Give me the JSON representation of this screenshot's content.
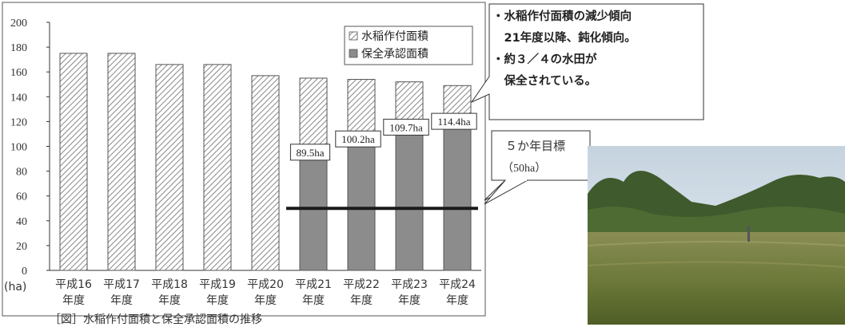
{
  "chart_data": {
    "type": "bar",
    "y_unit_label": "(ha)",
    "ylim": [
      0,
      200
    ],
    "yticks": [
      "0",
      "20",
      "40",
      "60",
      "80",
      "100",
      "120",
      "140",
      "160",
      "180",
      "200"
    ],
    "categories": [
      [
        "平成16",
        "年度"
      ],
      [
        "平成17",
        "年度"
      ],
      [
        "平成18",
        "年度"
      ],
      [
        "平成19",
        "年度"
      ],
      [
        "平成20",
        "年度"
      ],
      [
        "平成21",
        "年度"
      ],
      [
        "平成22",
        "年度"
      ],
      [
        "平成23",
        "年度"
      ],
      [
        "平成24",
        "年度"
      ]
    ],
    "series": [
      {
        "name": "水稲作付面積",
        "pattern": "hatched",
        "values": [
          175,
          175,
          166,
          166,
          157,
          155,
          154,
          152,
          149
        ]
      },
      {
        "name": "保全承認面積",
        "color": "#8c8c8c",
        "values": [
          null,
          null,
          null,
          null,
          null,
          89.5,
          100.2,
          109.7,
          114.4
        ]
      }
    ],
    "data_labels": [
      "89.5ha",
      "100.2ha",
      "109.7ha",
      "114.4ha"
    ],
    "target_line": {
      "value": 50,
      "label_line1": "５か年目標",
      "label_line2": "（50ha）"
    },
    "grid": false,
    "legend_position": "top-right"
  },
  "callout": {
    "lines": [
      "・水稲作付面積の減少傾向",
      "　21年度以降、鈍化傾向。",
      "・約３／４の水田が",
      "　保全されている。"
    ]
  },
  "caption": "［図］水稲作付面積と保全承認面積の推移",
  "colors": {
    "bar_fill": "#8c8c8c",
    "hatch": "#7a7a7a",
    "target": "#1a1a1a"
  }
}
